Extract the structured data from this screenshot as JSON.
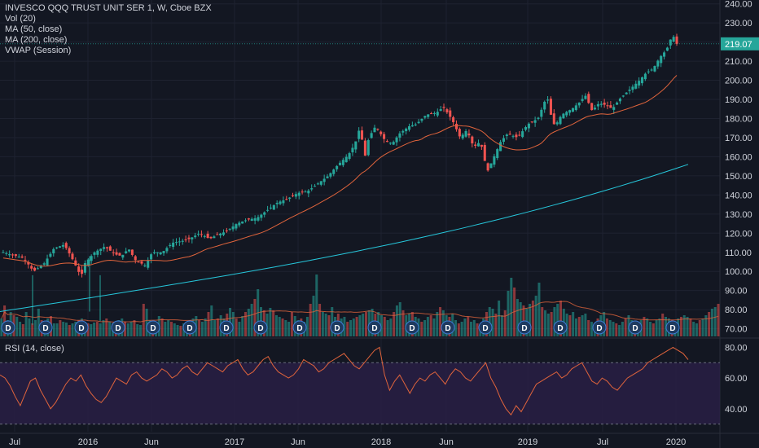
{
  "legend": {
    "title": "INVESCO QQQ TRUST UNIT SER 1, W, Cboe BZX",
    "indicators": [
      "Vol (20)",
      "MA (50, close)",
      "MA (200, close)",
      "VWAP (Session)"
    ]
  },
  "rsi_legend": "RSI (14, close)",
  "price_tag": "219.07",
  "dividend_label": "D",
  "colors": {
    "background": "#131722",
    "up": "#26a69a",
    "down": "#ef5350",
    "ma50": "#e0643c",
    "ma200": "#26c6da",
    "rsi_line": "#e0643c",
    "rsi_band": "#2a1f47",
    "price_tag_bg": "#26a69a",
    "grid": "#1e2230"
  },
  "chart_data": {
    "type": "candlestick",
    "x_ticks": [
      "Jul",
      "2016",
      "Jun",
      "2017",
      "Jun",
      "2018",
      "Jun",
      "2019",
      "Jul",
      "2020"
    ],
    "price_ticks": [
      "240.00",
      "230.00",
      "220.00",
      "210.00",
      "200.00",
      "190.00",
      "180.00",
      "170.00",
      "160.00",
      "150.00",
      "140.00",
      "130.00",
      "120.00",
      "110.00",
      "100.00",
      "90.00",
      "80.00",
      "70.00"
    ],
    "price_ylim": [
      66,
      242
    ],
    "rsi_ticks": [
      "80.00",
      "60.00",
      "40.00"
    ],
    "rsi_ylim": [
      25,
      85
    ],
    "rsi_band": [
      30,
      70
    ],
    "last_price": 219.07,
    "close_path": [
      [
        0,
        110
      ],
      [
        6,
        107
      ],
      [
        9,
        100
      ],
      [
        12,
        104
      ],
      [
        15,
        112
      ],
      [
        18,
        114
      ],
      [
        20,
        108
      ],
      [
        22,
        101
      ],
      [
        23,
        97
      ],
      [
        24,
        104
      ],
      [
        27,
        110
      ],
      [
        30,
        113
      ],
      [
        33,
        109
      ],
      [
        35,
        108
      ],
      [
        37,
        112
      ],
      [
        39,
        106
      ],
      [
        42,
        103
      ],
      [
        44,
        110
      ],
      [
        47,
        110
      ],
      [
        50,
        115
      ],
      [
        53,
        116
      ],
      [
        55,
        117
      ],
      [
        58,
        120
      ],
      [
        61,
        117
      ],
      [
        63,
        119
      ],
      [
        66,
        121
      ],
      [
        69,
        125
      ],
      [
        72,
        127
      ],
      [
        75,
        128
      ],
      [
        78,
        132
      ],
      [
        81,
        136
      ],
      [
        84,
        138
      ],
      [
        87,
        141
      ],
      [
        90,
        142
      ],
      [
        93,
        146
      ],
      [
        96,
        150
      ],
      [
        99,
        156
      ],
      [
        102,
        161
      ],
      [
        104,
        167
      ],
      [
        105,
        174
      ],
      [
        106,
        169
      ],
      [
        107,
        160
      ],
      [
        108,
        170
      ],
      [
        110,
        176
      ],
      [
        113,
        168
      ],
      [
        115,
        167
      ],
      [
        117,
        172
      ],
      [
        120,
        176
      ],
      [
        122,
        177
      ],
      [
        125,
        182
      ],
      [
        128,
        183
      ],
      [
        130,
        186
      ],
      [
        132,
        181
      ],
      [
        133,
        178
      ],
      [
        135,
        170
      ],
      [
        137,
        174
      ],
      [
        139,
        165
      ],
      [
        141,
        168
      ],
      [
        142,
        160
      ],
      [
        143,
        152
      ],
      [
        145,
        160
      ],
      [
        147,
        168
      ],
      [
        149,
        172
      ],
      [
        152,
        170
      ],
      [
        155,
        177
      ],
      [
        158,
        180
      ],
      [
        160,
        189
      ],
      [
        161,
        190
      ],
      [
        162,
        180
      ],
      [
        163,
        176
      ],
      [
        165,
        182
      ],
      [
        168,
        185
      ],
      [
        170,
        188
      ],
      [
        172,
        192
      ],
      [
        174,
        184
      ],
      [
        176,
        188
      ],
      [
        178,
        187
      ],
      [
        180,
        185
      ],
      [
        182,
        190
      ],
      [
        185,
        195
      ],
      [
        188,
        200
      ],
      [
        190,
        204
      ],
      [
        192,
        206
      ],
      [
        194,
        212
      ],
      [
        196,
        216
      ],
      [
        197,
        221
      ],
      [
        198,
        223
      ],
      [
        199,
        219
      ]
    ],
    "volume_bars": [
      22,
      38,
      20,
      30,
      26,
      24,
      18,
      15,
      30,
      22,
      16,
      20,
      34,
      20,
      18,
      22,
      25,
      16,
      16,
      20,
      18,
      17,
      14,
      16,
      18,
      20,
      22,
      18,
      16,
      15,
      17,
      18,
      16,
      20,
      22,
      18,
      16,
      17,
      20,
      22,
      18,
      16,
      18,
      20,
      15,
      14,
      40,
      34,
      20,
      18,
      16,
      25,
      22,
      18,
      20,
      18,
      16,
      14,
      13,
      16,
      18,
      20,
      22,
      25,
      20,
      18,
      22,
      30,
      38,
      20,
      22,
      26,
      22,
      28,
      35,
      30,
      22,
      18,
      25,
      30,
      34,
      40,
      46,
      58,
      36,
      32,
      28,
      35,
      32,
      26,
      24,
      22,
      20,
      18,
      30,
      25,
      20,
      22,
      18,
      24,
      40,
      50,
      76,
      40,
      30,
      28,
      26,
      36,
      24,
      28,
      22,
      24,
      18,
      20,
      22,
      24,
      26,
      28,
      30,
      32,
      34,
      28,
      30,
      26,
      24,
      20,
      22,
      30,
      38,
      42,
      32,
      26,
      28,
      30,
      24,
      22,
      18,
      20,
      24,
      26,
      22,
      30,
      36,
      32,
      26,
      24,
      28,
      20,
      16,
      18,
      22,
      24,
      18,
      20,
      16,
      14,
      22,
      30,
      36,
      34,
      28,
      44,
      26,
      32,
      56,
      72,
      60,
      46,
      42,
      38,
      34,
      40,
      44,
      50,
      66,
      36,
      32,
      28,
      30,
      36,
      40,
      44,
      34,
      28,
      26,
      30,
      22,
      24,
      26,
      28,
      20,
      18,
      16,
      22,
      26,
      30,
      22,
      20,
      18,
      16,
      14,
      18,
      22,
      26,
      20,
      18,
      16,
      20,
      24,
      22,
      18,
      16,
      20,
      22,
      28,
      24,
      22,
      20,
      18,
      22,
      24,
      26,
      24,
      22,
      18,
      16,
      20,
      22,
      26,
      30,
      34,
      36,
      40
    ]
  },
  "rsi_data": [
    62,
    60,
    55,
    48,
    42,
    50,
    58,
    60,
    52,
    46,
    40,
    44,
    50,
    56,
    60,
    58,
    62,
    55,
    50,
    46,
    44,
    48,
    54,
    60,
    58,
    56,
    62,
    64,
    60,
    58,
    60,
    62,
    66,
    64,
    60,
    62,
    66,
    68,
    64,
    62,
    66,
    70,
    68,
    66,
    64,
    68,
    70,
    72,
    66,
    62,
    64,
    68,
    72,
    74,
    68,
    64,
    62,
    60,
    62,
    66,
    72,
    70,
    68,
    64,
    66,
    70,
    72,
    74,
    76,
    72,
    68,
    66,
    70,
    74,
    78,
    80,
    62,
    52,
    58,
    62,
    56,
    50,
    56,
    60,
    58,
    62,
    64,
    60,
    56,
    62,
    66,
    64,
    60,
    58,
    62,
    66,
    70,
    60,
    54,
    46,
    40,
    36,
    42,
    38,
    44,
    50,
    56,
    58,
    60,
    62,
    64,
    60,
    62,
    66,
    68,
    70,
    64,
    58,
    56,
    60,
    58,
    54,
    52,
    56,
    60,
    62,
    64,
    66,
    70,
    72,
    74,
    76,
    78,
    80,
    78,
    76,
    72
  ]
}
